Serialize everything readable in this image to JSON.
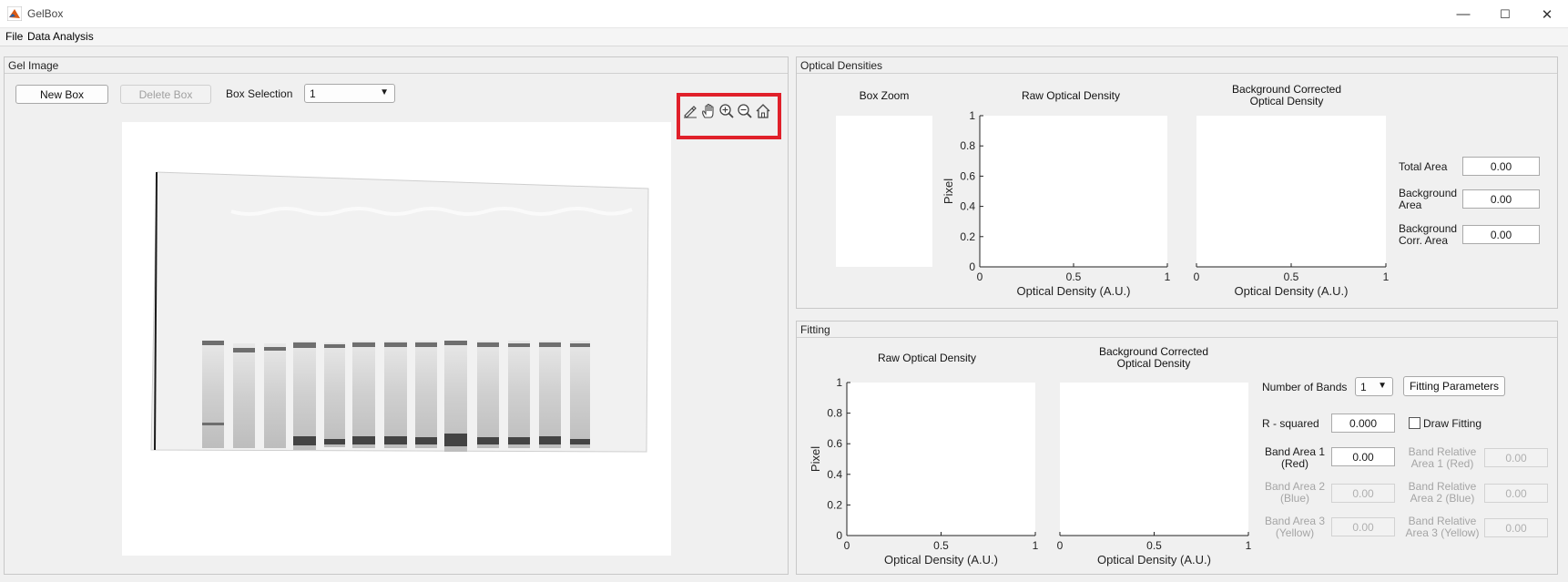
{
  "window": {
    "title": "GelBox",
    "minimize": "—",
    "maximize": "☐",
    "close": "✕"
  },
  "menu": [
    "File",
    "Data Analysis"
  ],
  "gel_panel": {
    "title": "Gel Image",
    "new_box_label": "New Box",
    "delete_box_label": "Delete Box",
    "box_selection_label": "Box Selection",
    "box_selection_value": "1",
    "toolbar_icons": [
      "brush-icon",
      "pan-hand-icon",
      "zoom-in-icon",
      "zoom-out-icon",
      "home-icon"
    ]
  },
  "od_panel": {
    "title": "Optical Densities",
    "box_zoom_title": "Box Zoom",
    "raw_title": "Raw Optical Density",
    "bg_title_line1": "Background Corrected",
    "bg_title_line2": "Optical Density",
    "y_label": "Pixel",
    "x_label": "Optical Density (A.U.)",
    "y_ticks": [
      "1",
      "0.8",
      "0.6",
      "0.4",
      "0.2",
      "0"
    ],
    "x_ticks": [
      "0",
      "0.5",
      "1"
    ],
    "total_area_label": "Total Area",
    "total_area_value": "0.00",
    "background_area_label1": "Background",
    "background_area_label2": "Area",
    "background_area_value": "0.00",
    "bg_corr_area_label1": "Background",
    "bg_corr_area_label2": "Corr. Area",
    "bg_corr_area_value": "0.00"
  },
  "fit_panel": {
    "title": "Fitting",
    "raw_title": "Raw Optical Density",
    "bg_title_line1": "Background Corrected",
    "bg_title_line2": "Optical Density",
    "y_label": "Pixel",
    "x_label": "Optical Density (A.U.)",
    "y_ticks": [
      "1",
      "0.8",
      "0.6",
      "0.4",
      "0.2",
      "0"
    ],
    "x_ticks": [
      "0",
      "0.5",
      "1"
    ],
    "num_bands_label": "Number of Bands",
    "num_bands_value": "1",
    "fitting_params_label": "Fitting Parameters",
    "r_squared_label": "R - squared",
    "r_squared_value": "0.000",
    "draw_fitting_label": "Draw Fitting",
    "band1_label1": "Band Area 1",
    "band1_label2": "(Red)",
    "band1_value": "0.00",
    "band2_label1": "Band Area 2",
    "band2_label2": "(Blue)",
    "band2_value": "0.00",
    "band3_label1": "Band Area 3",
    "band3_label2": "(Yellow)",
    "band3_value": "0.00",
    "rel1_label1": "Band Relative",
    "rel1_label2": "Area 1 (Red)",
    "rel1_value": "0.00",
    "rel2_label1": "Band Relative",
    "rel2_label2": "Area 2 (Blue)",
    "rel2_value": "0.00",
    "rel3_label1": "Band Relative",
    "rel3_label2": "Area 3 (Yellow)",
    "rel3_value": "0.00"
  },
  "colors": {
    "highlight": "#e0202a",
    "window_bg": "#f0f0f0"
  }
}
